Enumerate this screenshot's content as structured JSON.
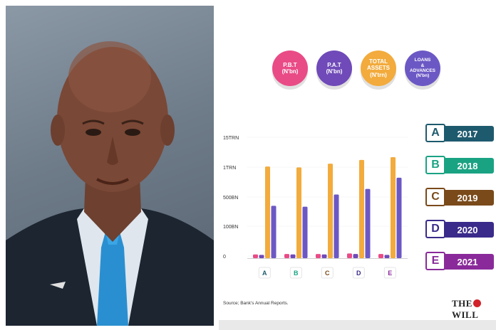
{
  "chart_data": {
    "type": "bar",
    "categories": [
      "A",
      "B",
      "C",
      "D",
      "E"
    ],
    "series": [
      {
        "name": "P.B.T (N'bn)",
        "values": [
          40,
          45,
          45,
          50,
          45
        ]
      },
      {
        "name": "P.A.T (N'bn)",
        "values": [
          35,
          40,
          40,
          45,
          35
        ]
      },
      {
        "name": "TOTAL ASSETS (N'trn)",
        "values": [
          980,
          970,
          1010,
          1050,
          1080
        ]
      },
      {
        "name": "LOANS & ADVANCES (N'bn)",
        "values": [
          560,
          550,
          680,
          740,
          860
        ]
      }
    ],
    "ytick_labels": [
      "0",
      "100BN",
      "500BN",
      "1TRN",
      "15TRN"
    ],
    "ylim": [
      0,
      1300
    ],
    "title": "",
    "xlabel": "",
    "ylabel": ""
  },
  "legend": [
    {
      "lines": [
        "P.B.T",
        "(N'bn)"
      ],
      "color": "#e94b86"
    },
    {
      "lines": [
        "P.A.T",
        "(N'bn)"
      ],
      "color": "#6f4ab8"
    },
    {
      "lines": [
        "TOTAL",
        "ASSETS",
        "(N'trn)"
      ],
      "color": "#f2ab3c"
    },
    {
      "lines": [
        "LOANS",
        "&",
        "ADVANCES",
        "(N'bn)"
      ],
      "color": "#6c58c4"
    }
  ],
  "years": [
    {
      "letter": "A",
      "year": "2017",
      "color": "#1e5a6e"
    },
    {
      "letter": "B",
      "year": "2018",
      "color": "#1aa383"
    },
    {
      "letter": "C",
      "year": "2019",
      "color": "#7a4a1a"
    },
    {
      "letter": "D",
      "year": "2020",
      "color": "#3a2a8a"
    },
    {
      "letter": "E",
      "year": "2021",
      "color": "#8a2a9a"
    }
  ],
  "category_colors": [
    "#1e5a6e",
    "#1aa383",
    "#7a4a1a",
    "#3a2a8a",
    "#8a2a9a"
  ],
  "source": "Source; Bank's Annual Reports.",
  "logo": {
    "pre": "THE",
    "post": "WILL"
  }
}
